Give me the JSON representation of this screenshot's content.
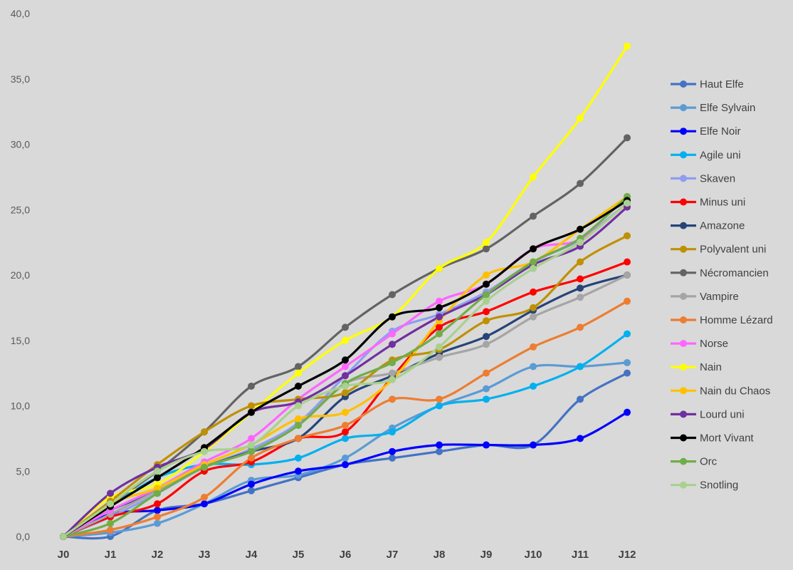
{
  "chart_data": {
    "type": "line",
    "title": "",
    "xlabel": "",
    "ylabel": "",
    "categories": [
      "J0",
      "J1",
      "J2",
      "J3",
      "J4",
      "J5",
      "J6",
      "J7",
      "J8",
      "J9",
      "J10",
      "J11",
      "J12"
    ],
    "ylim": [
      0,
      40
    ],
    "y_ticks": [
      "0,0",
      "5,0",
      "10,0",
      "15,0",
      "20,0",
      "25,0",
      "30,0",
      "35,0",
      "40,0"
    ],
    "grid": false,
    "legend_position": "right",
    "series": [
      {
        "name": "Haut Elfe",
        "color": "#4472c4",
        "values": [
          0,
          0,
          2,
          2.5,
          3.5,
          4.5,
          5.5,
          6,
          6.5,
          7,
          7,
          10.5,
          12.5
        ]
      },
      {
        "name": "Elfe Sylvain",
        "color": "#5b9bd5",
        "values": [
          0,
          0.3,
          1,
          2.5,
          4.3,
          4.7,
          6,
          8.3,
          10,
          11.3,
          13,
          13,
          13.3
        ]
      },
      {
        "name": "Elfe Noir",
        "color": "#0000ff",
        "values": [
          0,
          1.7,
          2,
          2.5,
          4,
          5,
          5.5,
          6.5,
          7,
          7,
          7,
          7.5,
          9.5
        ]
      },
      {
        "name": "Agile uni",
        "color": "#00b0f0",
        "values": [
          0,
          2.3,
          4.5,
          5.5,
          5.5,
          6,
          7.5,
          8,
          10,
          10.5,
          11.5,
          13,
          15.5
        ]
      },
      {
        "name": "Skaven",
        "color": "#8e9ef0",
        "values": [
          0,
          1.5,
          3.3,
          5.3,
          6.7,
          8.7,
          12.3,
          15.7,
          17,
          18.7,
          21,
          22.7,
          25.5
        ]
      },
      {
        "name": "Minus uni",
        "color": "#ff0000",
        "values": [
          0,
          1.5,
          2.5,
          5,
          5.7,
          7.5,
          8,
          12.2,
          16,
          17.2,
          18.7,
          19.7,
          21
        ]
      },
      {
        "name": "Amazone",
        "color": "#264478",
        "values": [
          0,
          2,
          3.5,
          5.3,
          6.5,
          7.5,
          10.7,
          12.3,
          14,
          15.3,
          17.3,
          19,
          20
        ]
      },
      {
        "name": "Nécromancien",
        "color": "#636363",
        "values": [
          0,
          2.5,
          5,
          8,
          11.5,
          13,
          16,
          18.5,
          20.5,
          22,
          24.5,
          27,
          30.5
        ]
      },
      {
        "name": "Vampire",
        "color": "#a5a5a5",
        "values": [
          0,
          1.7,
          3.5,
          5.3,
          6.5,
          8.5,
          11.7,
          12.5,
          13.7,
          14.7,
          16.8,
          18.3,
          20
        ]
      },
      {
        "name": "Homme Lézard",
        "color": "#ed7d31",
        "values": [
          0,
          0.5,
          1.5,
          3,
          6,
          7.5,
          8.5,
          10.5,
          10.5,
          12.5,
          14.5,
          16,
          18
        ]
      },
      {
        "name": "Norse",
        "color": "#ff66ff",
        "values": [
          0,
          2,
          3.7,
          5.7,
          7.5,
          10.5,
          13,
          15.5,
          18,
          19.3,
          22,
          22.7,
          25.5
        ]
      },
      {
        "name": "Nain",
        "color": "#ffff00",
        "values": [
          0,
          3,
          4,
          6.5,
          9.5,
          12.5,
          15,
          16.8,
          20.5,
          22.5,
          27.5,
          32,
          37.5
        ]
      },
      {
        "name": "Nain du Chaos",
        "color": "#ffc000",
        "values": [
          0,
          2.5,
          3.7,
          5.5,
          7,
          9,
          9.5,
          12,
          16.5,
          20,
          21,
          23.5,
          26
        ]
      },
      {
        "name": "Polyvalent uni",
        "color": "#bf9000",
        "values": [
          0,
          2.7,
          5.5,
          8,
          10,
          10.5,
          11,
          13.5,
          14.3,
          16.5,
          17.5,
          21,
          23
        ]
      },
      {
        "name": "Lourd uni",
        "color": "#7030a0",
        "values": [
          0,
          3.3,
          5.3,
          6.7,
          9.5,
          10.3,
          12.3,
          14.7,
          16.8,
          18.5,
          20.8,
          22.2,
          25.2
        ]
      },
      {
        "name": "Orc",
        "color": "#70ad47",
        "values": [
          0,
          1,
          3.3,
          5.3,
          6.5,
          8.5,
          11.7,
          13.3,
          15.5,
          18.5,
          21,
          22.8,
          26
        ]
      },
      {
        "name": "Mort Vivant",
        "color": "#000000",
        "values": [
          0,
          2.3,
          4.5,
          6.8,
          9.5,
          11.5,
          13.5,
          16.8,
          17.5,
          19.3,
          22,
          23.5,
          25.7
        ]
      },
      {
        "name": "Snotling",
        "color": "#a9d18e",
        "values": [
          0,
          2.5,
          5,
          6.5,
          7,
          10,
          11.5,
          12,
          14.5,
          18,
          20.5,
          22.5,
          25.5
        ]
      }
    ],
    "legend_order": [
      "Haut Elfe",
      "Elfe Sylvain",
      "Elfe Noir",
      "Agile uni",
      "Skaven",
      "Minus uni",
      "Amazone",
      "Polyvalent uni",
      "Nécromancien",
      "Vampire",
      "Homme Lézard",
      "Norse",
      "Nain",
      "Nain du Chaos",
      "Lourd uni",
      "Mort Vivant",
      "Orc",
      "Snotling"
    ]
  }
}
